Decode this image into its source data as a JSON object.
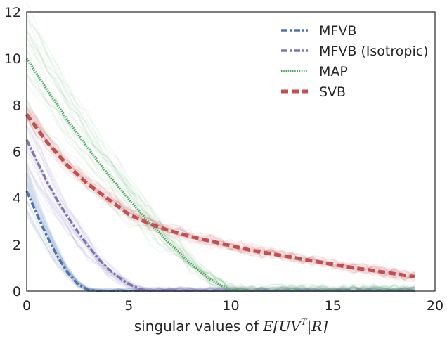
{
  "chart_data": {
    "type": "line",
    "title": "",
    "xlabel": "singular values of ",
    "xlabel_math": "E[UV",
    "xlabel_sup": "T",
    "xlabel_math_end": "|R]",
    "ylabel": "",
    "xlim": [
      0,
      20
    ],
    "ylim": [
      0,
      12
    ],
    "xticks": [
      0,
      5,
      10,
      15,
      20
    ],
    "yticks": [
      0,
      2,
      4,
      6,
      8,
      10,
      12
    ],
    "grid": false,
    "legend_position": "top-right",
    "series": [
      {
        "name": "MFVB",
        "color": "#4c72b0",
        "style": "dashdot",
        "x": [
          0,
          0.5,
          1,
          1.5,
          2,
          2.5,
          3,
          3.5,
          19
        ],
        "y": [
          4.3,
          3.3,
          2.35,
          1.5,
          0.8,
          0.3,
          0.05,
          0,
          0
        ]
      },
      {
        "name": "MFVB (Isotropic)",
        "color": "#8172b2",
        "style": "dashdot",
        "x": [
          0,
          0.5,
          1,
          1.5,
          2,
          2.5,
          3,
          3.5,
          4,
          4.5,
          5,
          5.5,
          6,
          19
        ],
        "y": [
          6.5,
          5.6,
          4.7,
          3.9,
          3.2,
          2.55,
          1.95,
          1.4,
          0.95,
          0.6,
          0.3,
          0.1,
          0,
          0
        ]
      },
      {
        "name": "MAP",
        "color": "#55a868",
        "style": "dotted",
        "x": [
          0,
          1,
          2,
          3,
          4,
          5,
          6,
          7,
          8,
          9,
          9.5,
          10,
          10.5,
          19
        ],
        "y": [
          10.0,
          8.65,
          7.35,
          6.15,
          5.0,
          3.95,
          2.95,
          2.05,
          1.2,
          0.5,
          0.25,
          0.05,
          0,
          0
        ]
      },
      {
        "name": "SVB",
        "color": "#c44e52",
        "style": "dashed",
        "x": [
          0,
          1,
          2,
          3,
          4,
          5,
          6,
          7,
          8,
          9,
          10,
          11,
          12,
          13,
          14,
          15,
          16,
          17,
          18,
          19
        ],
        "y": [
          7.6,
          6.4,
          5.4,
          4.6,
          3.95,
          3.3,
          2.9,
          2.6,
          2.35,
          2.15,
          1.95,
          1.75,
          1.6,
          1.45,
          1.3,
          1.15,
          1.0,
          0.88,
          0.75,
          0.62
        ]
      }
    ]
  }
}
